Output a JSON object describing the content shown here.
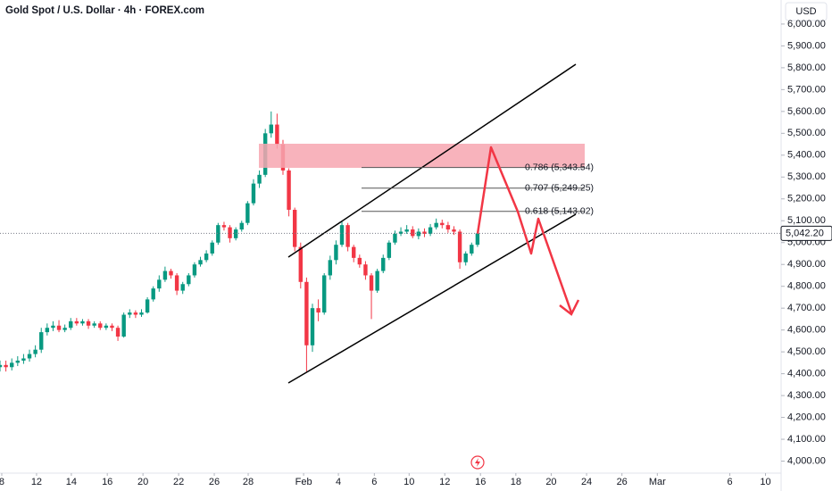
{
  "chart_data": {
    "type": "candlestick",
    "title": "Gold Spot / U.S. Dollar · 4h · FOREX.com",
    "currency": "USD",
    "x": [
      0,
      2,
      4,
      6,
      8,
      10,
      12,
      14,
      16,
      18,
      20,
      22,
      24,
      26,
      28,
      30,
      32,
      34,
      36,
      38,
      40,
      42,
      44,
      46,
      48,
      50,
      52,
      54,
      56,
      58,
      60,
      62,
      64,
      66,
      68,
      70,
      72,
      74,
      76,
      78,
      80,
      82,
      84,
      86,
      88,
      90,
      92,
      94,
      96,
      98,
      100,
      102,
      104,
      106,
      108,
      110,
      112,
      114,
      116,
      118,
      120,
      122,
      124,
      126,
      128,
      130,
      132,
      134,
      136,
      138,
      140,
      142,
      144,
      146,
      148,
      150,
      152,
      154,
      156,
      158,
      160,
      162
    ],
    "open": [
      4430,
      4440,
      4430,
      4450,
      4460,
      4470,
      4490,
      4510,
      4590,
      4610,
      4620,
      4600,
      4610,
      4640,
      4630,
      4640,
      4620,
      4630,
      4610,
      4620,
      4610,
      4570,
      4670,
      4680,
      4670,
      4680,
      4740,
      4790,
      4830,
      4870,
      4850,
      4780,
      4810,
      4850,
      4900,
      4920,
      4950,
      5000,
      5080,
      5070,
      5020,
      5060,
      5090,
      5180,
      5270,
      5310,
      5500,
      5540,
      5450,
      5330,
      5150,
      4980,
      4820,
      4530,
      4700,
      4680,
      4850,
      4920,
      4990,
      5080,
      4980,
      4930,
      4900,
      4850,
      4780,
      4870,
      4930,
      5000,
      5040,
      5050,
      5060,
      5030,
      5050,
      5040,
      5070,
      5090,
      5080,
      5060,
      5050,
      4910,
      4950,
      4990
    ],
    "high": [
      4460,
      4460,
      4470,
      4480,
      4490,
      4510,
      4530,
      4610,
      4630,
      4640,
      4645,
      4625,
      4655,
      4655,
      4650,
      4650,
      4640,
      4640,
      4630,
      4630,
      4620,
      4680,
      4695,
      4690,
      4695,
      4750,
      4800,
      4850,
      4890,
      4880,
      4860,
      4820,
      4860,
      4910,
      4935,
      4965,
      5010,
      5090,
      5095,
      5080,
      5070,
      5100,
      5190,
      5290,
      5330,
      5520,
      5600,
      5590,
      5470,
      5340,
      5160,
      5000,
      4840,
      4720,
      4740,
      4860,
      4940,
      5010,
      5100,
      5090,
      4990,
      4945,
      4915,
      4860,
      4880,
      4945,
      5010,
      5055,
      5070,
      5080,
      5075,
      5065,
      5065,
      5085,
      5110,
      5105,
      5095,
      5075,
      5060,
      4960,
      5000,
      5050
    ],
    "low": [
      4410,
      4410,
      4415,
      4435,
      4445,
      4455,
      4475,
      4495,
      4575,
      4595,
      4590,
      4590,
      4600,
      4620,
      4620,
      4605,
      4610,
      4600,
      4600,
      4595,
      4550,
      4565,
      4655,
      4655,
      4660,
      4675,
      4730,
      4775,
      4820,
      4835,
      4760,
      4765,
      4800,
      4840,
      4890,
      4910,
      4940,
      4990,
      5055,
      5000,
      5010,
      5050,
      5080,
      5170,
      5250,
      5300,
      5480,
      5430,
      5310,
      5120,
      4960,
      4790,
      4410,
      4500,
      4640,
      4670,
      4830,
      4900,
      4980,
      4960,
      4910,
      4885,
      4830,
      4650,
      4770,
      4860,
      4920,
      4990,
      5030,
      5040,
      5020,
      5015,
      5025,
      5030,
      5060,
      5065,
      5045,
      5035,
      4880,
      4895,
      4940,
      4980
    ],
    "close": [
      4440,
      4430,
      4450,
      4460,
      4470,
      4490,
      4510,
      4590,
      4610,
      4620,
      4600,
      4610,
      4640,
      4630,
      4640,
      4620,
      4630,
      4610,
      4620,
      4610,
      4570,
      4670,
      4680,
      4670,
      4680,
      4740,
      4790,
      4830,
      4870,
      4850,
      4780,
      4810,
      4850,
      4900,
      4920,
      4950,
      5000,
      5080,
      5070,
      5020,
      5060,
      5090,
      5180,
      5270,
      5310,
      5500,
      5540,
      5450,
      5330,
      5150,
      4980,
      4820,
      4530,
      4700,
      4680,
      4850,
      4920,
      4990,
      5080,
      4980,
      4930,
      4900,
      4850,
      4780,
      4870,
      4930,
      5000,
      5040,
      5050,
      5060,
      5030,
      5050,
      5040,
      5070,
      5090,
      5080,
      5060,
      5050,
      4910,
      4950,
      4990,
      5042.2
    ],
    "up_color": "#089981",
    "down_color": "#f23645",
    "last": {
      "value": 5042.2,
      "label": "5,042.20"
    },
    "fib_levels": [
      {
        "price": 5343.54,
        "label": "0.786 (5,343.54)"
      },
      {
        "price": 5249.25,
        "label": "0.707 (5,249.25)"
      },
      {
        "price": 5143.02,
        "label": "0.618 (5,143.02)"
      }
    ],
    "xlim": [
      0,
      265
    ],
    "xticks": [
      {
        "value": 0.6,
        "label": "8"
      },
      {
        "value": 12.4,
        "label": "12"
      },
      {
        "value": 24.2,
        "label": "14"
      },
      {
        "value": 36.4,
        "label": "16"
      },
      {
        "value": 48.5,
        "label": "20"
      },
      {
        "value": 60.6,
        "label": "22"
      },
      {
        "value": 72.7,
        "label": "26"
      },
      {
        "value": 84.2,
        "label": "28"
      },
      {
        "value": 103,
        "label": "Feb"
      },
      {
        "value": 114.8,
        "label": "4"
      },
      {
        "value": 127,
        "label": "6"
      },
      {
        "value": 138.8,
        "label": "10"
      },
      {
        "value": 150.9,
        "label": "12"
      },
      {
        "value": 163,
        "label": "16"
      },
      {
        "value": 175,
        "label": "18"
      },
      {
        "value": 187,
        "label": "20"
      },
      {
        "value": 199,
        "label": "24"
      },
      {
        "value": 211,
        "label": "26"
      },
      {
        "value": 223,
        "label": "Mar"
      },
      {
        "value": 247.6,
        "label": "6"
      },
      {
        "value": 259.7,
        "label": "10"
      }
    ],
    "ylim": [
      3945,
      6110
    ],
    "yticks": [
      {
        "value": 4000,
        "label": "4,000.00"
      },
      {
        "value": 4100,
        "label": "4,100.00"
      },
      {
        "value": 4200,
        "label": "4,200.00"
      },
      {
        "value": 4300,
        "label": "4,300.00"
      },
      {
        "value": 4400,
        "label": "4,400.00"
      },
      {
        "value": 4500,
        "label": "4,500.00"
      },
      {
        "value": 4600,
        "label": "4,600.00"
      },
      {
        "value": 4700,
        "label": "4,700.00"
      },
      {
        "value": 4800,
        "label": "4,800.00"
      },
      {
        "value": 4900,
        "label": "4,900.00"
      },
      {
        "value": 5000,
        "label": "5,000.00"
      },
      {
        "value": 5100,
        "label": "5,100.00"
      },
      {
        "value": 5200,
        "label": "5,200.00"
      },
      {
        "value": 5300,
        "label": "5,300.00"
      },
      {
        "value": 5400,
        "label": "5,400.00"
      },
      {
        "value": 5500,
        "label": "5,500.00"
      },
      {
        "value": 5600,
        "label": "5,600.00"
      },
      {
        "value": 5700,
        "label": "5,700.00"
      },
      {
        "value": 5800,
        "label": "5,800.00"
      },
      {
        "value": 5900,
        "label": "5,900.00"
      },
      {
        "value": 6000,
        "label": "6,000.00"
      }
    ]
  }
}
